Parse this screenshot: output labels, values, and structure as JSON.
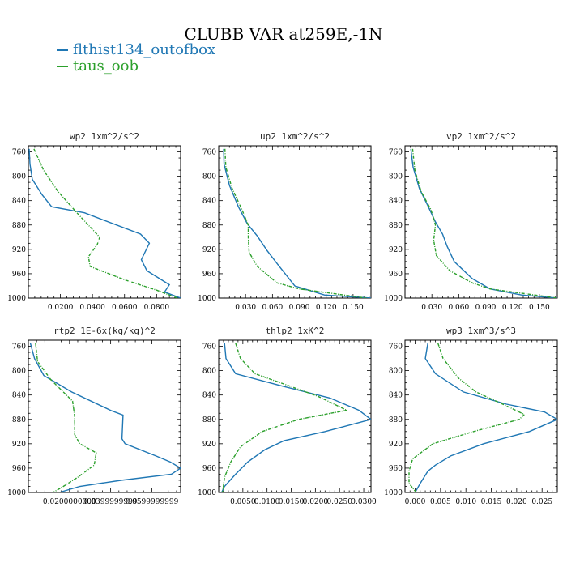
{
  "figure": {
    "title": "CLUBB VAR at259E,-1N",
    "legend": [
      {
        "label": "flthist134_outofbox",
        "color": "#1f77b4"
      },
      {
        "label": "taus_oob",
        "color": "#2ca02c"
      }
    ]
  },
  "chart_data": [
    {
      "type": "line",
      "title": "wp2  1xm^2/s^2",
      "xlim": [
        0,
        0.095
      ],
      "ylim": [
        1000,
        750
      ],
      "xticks": [
        0.02,
        0.04,
        0.06,
        0.08
      ],
      "xtick_labels": [
        "0.0200",
        "0.0400",
        "0.0600",
        "0.0800"
      ],
      "yticks": [
        760,
        800,
        840,
        880,
        920,
        960,
        1000
      ],
      "series": [
        {
          "name": "flthist134_outofbox",
          "color": "#1f77b4",
          "x": [
            0.0005,
            0.001,
            0.0025,
            0.0085,
            0.0145,
            0.035,
            0.07,
            0.0755,
            0.0705,
            0.074,
            0.088,
            0.085,
            0.095
          ],
          "y": [
            755,
            780,
            805,
            830,
            850,
            860,
            895,
            910,
            937,
            955,
            978,
            990,
            1000
          ]
        },
        {
          "name": "taus_oob",
          "color": "#2ca02c",
          "dashed": true,
          "x": [
            0.0035,
            0.0095,
            0.0185,
            0.031,
            0.0445,
            0.043,
            0.0375,
            0.0385,
            0.06,
            0.08,
            0.093
          ],
          "y": [
            755,
            790,
            825,
            862,
            900,
            912,
            932,
            948,
            970,
            987,
            1000
          ]
        }
      ]
    },
    {
      "type": "line",
      "title": "up2  1xm^2/s^2",
      "xlim": [
        0,
        0.17
      ],
      "ylim": [
        1000,
        750
      ],
      "xticks": [
        0.03,
        0.06,
        0.09,
        0.12,
        0.15
      ],
      "xtick_labels": [
        "0.030",
        "0.060",
        "0.090",
        "0.120",
        "0.150"
      ],
      "yticks": [
        760,
        800,
        840,
        880,
        920,
        960,
        1000
      ],
      "series": [
        {
          "name": "flthist134_outofbox",
          "color": "#1f77b4",
          "x": [
            0.0055,
            0.006,
            0.012,
            0.022,
            0.032,
            0.043,
            0.054,
            0.066,
            0.085,
            0.118,
            0.17
          ],
          "y": [
            755,
            780,
            815,
            850,
            878,
            898,
            922,
            945,
            980,
            995,
            1000
          ]
        },
        {
          "name": "taus_oob",
          "color": "#2ca02c",
          "dashed": true,
          "x": [
            0.007,
            0.008,
            0.015,
            0.026,
            0.033,
            0.033,
            0.034,
            0.043,
            0.065,
            0.09,
            0.165
          ],
          "y": [
            755,
            785,
            820,
            855,
            880,
            900,
            925,
            948,
            975,
            985,
            1000
          ]
        }
      ]
    },
    {
      "type": "line",
      "title": "vp2  1xm^2/s^2",
      "xlim": [
        0,
        0.17
      ],
      "ylim": [
        1000,
        750
      ],
      "xticks": [
        0.03,
        0.06,
        0.09,
        0.12,
        0.15
      ],
      "xtick_labels": [
        "0.030",
        "0.060",
        "0.090",
        "0.120",
        "0.150"
      ],
      "yticks": [
        760,
        800,
        840,
        880,
        920,
        960,
        1000
      ],
      "series": [
        {
          "name": "flthist134_outofbox",
          "color": "#1f77b4",
          "x": [
            0.0065,
            0.009,
            0.016,
            0.026,
            0.034,
            0.042,
            0.047,
            0.055,
            0.075,
            0.095,
            0.13,
            0.17
          ],
          "y": [
            755,
            785,
            820,
            850,
            875,
            895,
            915,
            940,
            968,
            985,
            995,
            1000
          ]
        },
        {
          "name": "taus_oob",
          "color": "#2ca02c",
          "dashed": true,
          "x": [
            0.0085,
            0.011,
            0.018,
            0.029,
            0.034,
            0.032,
            0.035,
            0.05,
            0.075,
            0.095,
            0.17
          ],
          "y": [
            755,
            790,
            825,
            855,
            880,
            905,
            930,
            955,
            975,
            985,
            1000
          ]
        }
      ]
    },
    {
      "type": "line",
      "title": "rtp2  1E-6x(kg/kg)^2",
      "xlim": [
        0,
        0.074
      ],
      "ylim": [
        1000,
        750
      ],
      "xticks": [
        0.02,
        0.04,
        0.06
      ],
      "xtick_labels": [
        "0.0200000000",
        "0.0399999999",
        "0.0599999999"
      ],
      "yticks": [
        760,
        800,
        840,
        880,
        920,
        960,
        1000
      ],
      "series": [
        {
          "name": "flthist134_outofbox",
          "color": "#1f77b4",
          "x": [
            0.001,
            0.003,
            0.0075,
            0.021,
            0.0405,
            0.046,
            0.0455,
            0.047,
            0.062,
            0.069,
            0.074,
            0.0695,
            0.045,
            0.025,
            0.015
          ],
          "y": [
            755,
            780,
            808,
            835,
            866,
            873,
            912,
            920,
            940,
            950,
            960,
            970,
            980,
            990,
            1000
          ]
        },
        {
          "name": "taus_oob",
          "color": "#2ca02c",
          "dashed": true,
          "x": [
            0.0035,
            0.0045,
            0.011,
            0.0215,
            0.0225,
            0.0225,
            0.025,
            0.033,
            0.032,
            0.024,
            0.017,
            0.012
          ],
          "y": [
            755,
            785,
            815,
            850,
            875,
            905,
            920,
            935,
            955,
            975,
            990,
            1000
          ]
        }
      ]
    },
    {
      "type": "line",
      "title": "thlp2  1xK^2",
      "xlim": [
        0,
        0.0315
      ],
      "ylim": [
        1000,
        750
      ],
      "xticks": [
        0.005,
        0.01,
        0.015,
        0.02,
        0.025,
        0.03
      ],
      "xtick_labels": [
        "0.0050",
        "0.0100",
        "0.0150",
        "0.0200",
        "0.0250",
        "0.0300"
      ],
      "yticks": [
        760,
        800,
        840,
        880,
        920,
        960,
        1000
      ],
      "series": [
        {
          "name": "flthist134_outofbox",
          "color": "#1f77b4",
          "x": [
            0.0012,
            0.0015,
            0.0035,
            0.013,
            0.023,
            0.029,
            0.0315,
            0.022,
            0.0135,
            0.0095,
            0.006,
            0.0035,
            0.0012,
            0.0006
          ],
          "y": [
            755,
            780,
            805,
            825,
            845,
            865,
            880,
            900,
            915,
            930,
            950,
            970,
            990,
            1000
          ]
        },
        {
          "name": "taus_oob",
          "color": "#2ca02c",
          "dashed": true,
          "x": [
            0.0035,
            0.0045,
            0.0075,
            0.0135,
            0.0205,
            0.0265,
            0.0165,
            0.009,
            0.0045,
            0.0025,
            0.0012,
            0.0008
          ],
          "y": [
            755,
            780,
            805,
            822,
            842,
            865,
            880,
            900,
            925,
            950,
            975,
            1000
          ]
        }
      ]
    },
    {
      "type": "line",
      "title": "wp3  1xm^3/s^3",
      "xlim": [
        -0.002,
        0.028
      ],
      "ylim": [
        1000,
        750
      ],
      "xticks": [
        0.0,
        0.005,
        0.01,
        0.015,
        0.02,
        0.025
      ],
      "xtick_labels": [
        "0.000",
        "0.005",
        "0.010",
        "0.015",
        "0.020",
        "0.025"
      ],
      "yticks": [
        760,
        800,
        840,
        880,
        920,
        960,
        1000
      ],
      "series": [
        {
          "name": "flthist134_outofbox",
          "color": "#1f77b4",
          "x": [
            0.0025,
            0.002,
            0.004,
            0.0095,
            0.018,
            0.0255,
            0.028,
            0.0225,
            0.0135,
            0.007,
            0.004,
            0.0025,
            0.001,
            0.0
          ],
          "y": [
            755,
            780,
            805,
            835,
            855,
            868,
            880,
            900,
            920,
            940,
            955,
            965,
            985,
            1000
          ]
        },
        {
          "name": "taus_oob",
          "color": "#2ca02c",
          "dashed": true,
          "x": [
            0.0045,
            0.0055,
            0.0085,
            0.012,
            0.0175,
            0.0215,
            0.0205,
            0.0115,
            0.0035,
            -0.0005,
            -0.0012,
            -0.0012,
            0.0002
          ],
          "y": [
            755,
            780,
            812,
            835,
            856,
            872,
            880,
            900,
            920,
            945,
            965,
            985,
            1000
          ]
        }
      ]
    }
  ]
}
